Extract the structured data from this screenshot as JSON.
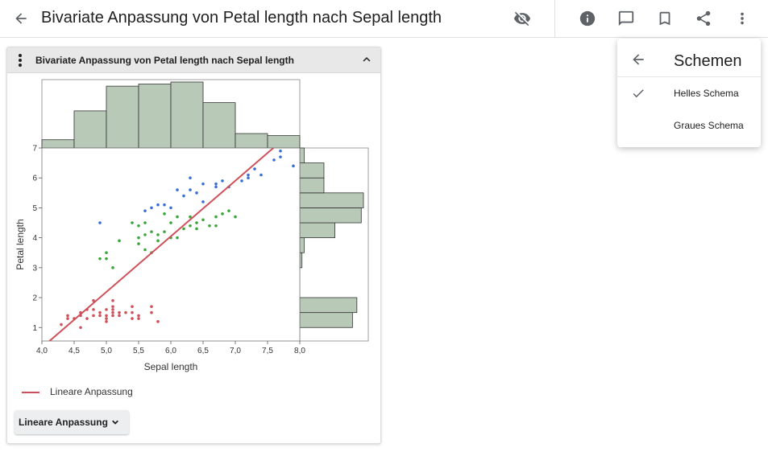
{
  "header": {
    "title": "Bivariate Anpassung von Petal length nach Sepal length",
    "icons": [
      "arrow-back-icon",
      "visibility-off-icon",
      "info-icon",
      "comment-icon",
      "bookmark-icon",
      "share-icon",
      "more-vert-icon"
    ]
  },
  "panel": {
    "title": "Bivariate Anpassung von Petal length nach Sepal length",
    "legend_label": "Lineare Anpassung",
    "dropdown_label": "Lineare Anpassung"
  },
  "menu": {
    "title": "Schemen",
    "items": [
      {
        "label": "Helles Schema",
        "checked": true
      },
      {
        "label": "Graues Schema",
        "checked": false
      }
    ]
  },
  "colors": {
    "histogram_fill": "#b8c9b8",
    "fit_line": "#d0505a",
    "setosa": "#d0505a",
    "versicolor": "#3aa63a",
    "virginica": "#3a6fd8"
  },
  "chart_data": {
    "type": "scatter",
    "xlabel": "Sepal length",
    "ylabel": "Petal length",
    "xlim": [
      4.0,
      8.0
    ],
    "ylim": [
      0.55,
      7.0
    ],
    "x_ticks": [
      "4,0",
      "4,5",
      "5,0",
      "5,5",
      "6,0",
      "6,5",
      "7,0",
      "7,5",
      "8,0"
    ],
    "y_ticks": [
      "1",
      "2",
      "3",
      "4",
      "5",
      "6",
      "7"
    ],
    "fit_line": {
      "name": "Lineare Anpassung",
      "slope": 1.858,
      "intercept": -7.101
    },
    "series": [
      {
        "color_key": "setosa",
        "points": [
          [
            4.3,
            1.1
          ],
          [
            4.4,
            1.4
          ],
          [
            4.4,
            1.3
          ],
          [
            4.5,
            1.3
          ],
          [
            4.6,
            1.4
          ],
          [
            4.6,
            1.0
          ],
          [
            4.6,
            1.5
          ],
          [
            4.7,
            1.3
          ],
          [
            4.7,
            1.6
          ],
          [
            4.8,
            1.4
          ],
          [
            4.8,
            1.6
          ],
          [
            4.8,
            1.9
          ],
          [
            4.9,
            1.4
          ],
          [
            4.9,
            1.5
          ],
          [
            5.0,
            1.4
          ],
          [
            5.0,
            1.6
          ],
          [
            5.0,
            1.2
          ],
          [
            5.0,
            1.3
          ],
          [
            5.1,
            1.4
          ],
          [
            5.1,
            1.5
          ],
          [
            5.1,
            1.7
          ],
          [
            5.1,
            1.9
          ],
          [
            5.1,
            1.6
          ],
          [
            5.2,
            1.5
          ],
          [
            5.2,
            1.4
          ],
          [
            5.3,
            1.5
          ],
          [
            5.4,
            1.7
          ],
          [
            5.4,
            1.3
          ],
          [
            5.4,
            1.5
          ],
          [
            5.5,
            1.4
          ],
          [
            5.5,
            1.3
          ],
          [
            5.7,
            1.5
          ],
          [
            5.7,
            1.7
          ],
          [
            5.8,
            1.2
          ]
        ]
      },
      {
        "color_key": "versicolor",
        "points": [
          [
            4.9,
            3.3
          ],
          [
            5.0,
            3.5
          ],
          [
            5.0,
            3.3
          ],
          [
            5.1,
            3.0
          ],
          [
            5.2,
            3.9
          ],
          [
            5.4,
            4.5
          ],
          [
            5.5,
            4.0
          ],
          [
            5.5,
            3.8
          ],
          [
            5.5,
            4.4
          ],
          [
            5.6,
            3.6
          ],
          [
            5.6,
            4.5
          ],
          [
            5.6,
            4.1
          ],
          [
            5.7,
            4.2
          ],
          [
            5.7,
            3.5
          ],
          [
            5.8,
            4.1
          ],
          [
            5.8,
            3.9
          ],
          [
            5.9,
            4.2
          ],
          [
            5.9,
            4.8
          ],
          [
            6.0,
            4.5
          ],
          [
            6.0,
            4.0
          ],
          [
            6.1,
            4.7
          ],
          [
            6.1,
            4.0
          ],
          [
            6.2,
            4.3
          ],
          [
            6.3,
            4.7
          ],
          [
            6.3,
            4.4
          ],
          [
            6.4,
            4.5
          ],
          [
            6.4,
            4.3
          ],
          [
            6.5,
            4.6
          ],
          [
            6.6,
            4.4
          ],
          [
            6.7,
            4.7
          ],
          [
            6.7,
            4.4
          ],
          [
            6.8,
            4.8
          ],
          [
            6.9,
            4.9
          ],
          [
            7.0,
            4.7
          ]
        ]
      },
      {
        "color_key": "virginica",
        "points": [
          [
            4.9,
            4.5
          ],
          [
            5.6,
            4.9
          ],
          [
            5.7,
            5.0
          ],
          [
            5.8,
            5.1
          ],
          [
            5.9,
            5.1
          ],
          [
            6.0,
            5.0
          ],
          [
            6.1,
            5.6
          ],
          [
            6.2,
            5.4
          ],
          [
            6.3,
            6.0
          ],
          [
            6.3,
            5.6
          ],
          [
            6.4,
            5.5
          ],
          [
            6.5,
            5.8
          ],
          [
            6.5,
            5.2
          ],
          [
            6.7,
            5.7
          ],
          [
            6.7,
            5.8
          ],
          [
            6.8,
            5.9
          ],
          [
            6.9,
            5.7
          ],
          [
            7.1,
            5.9
          ],
          [
            7.2,
            6.0
          ],
          [
            7.2,
            6.1
          ],
          [
            7.3,
            6.3
          ],
          [
            7.4,
            6.1
          ],
          [
            7.6,
            6.6
          ],
          [
            7.7,
            6.7
          ],
          [
            7.7,
            6.9
          ],
          [
            7.9,
            6.4
          ]
        ]
      }
    ],
    "x_histogram": {
      "bin_edges": [
        4.0,
        4.5,
        5.0,
        5.5,
        6.0,
        6.5,
        7.0,
        7.5,
        8.0
      ],
      "counts": [
        4,
        18,
        30,
        31,
        32,
        22,
        7,
        6
      ]
    },
    "y_histogram": {
      "bin_edges": [
        1.0,
        1.5,
        2.0,
        2.5,
        3.0,
        3.5,
        4.0,
        4.5,
        5.0,
        5.5,
        6.0,
        6.5,
        7.0
      ],
      "counts": [
        24,
        26,
        0,
        0,
        1,
        2,
        16,
        28,
        29,
        11,
        11,
        2
      ]
    }
  }
}
